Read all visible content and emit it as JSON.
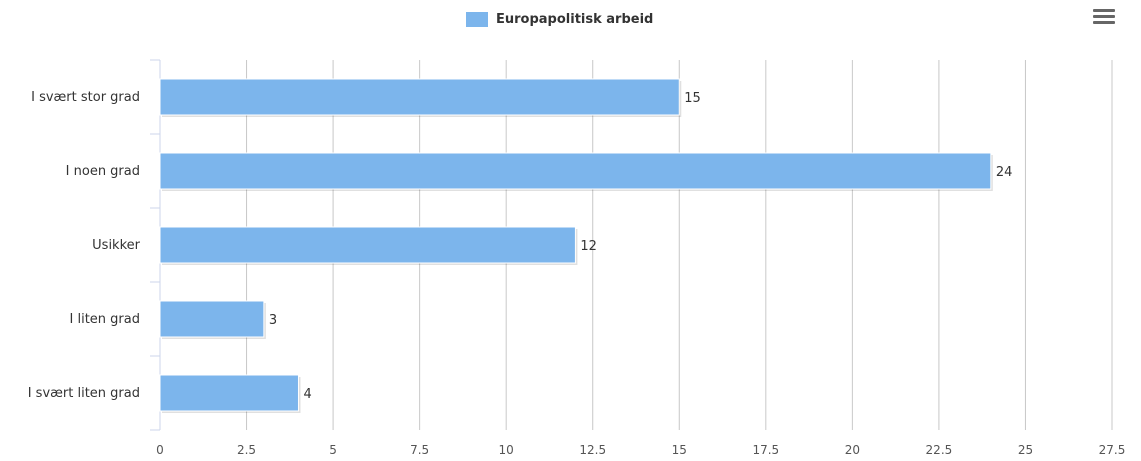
{
  "legend": {
    "label": "Europapolitisk arbeid"
  },
  "menu": {
    "icon": "hamburger-menu-icon"
  },
  "colors": {
    "bar": "#7cb5ec",
    "grid": "#c8c8c8",
    "axis": "#ccd6eb",
    "text": "#333333",
    "tick": "#555555"
  },
  "chart_data": {
    "type": "bar",
    "orientation": "horizontal",
    "categories": [
      "I svært stor grad",
      "I noen grad",
      "Usikker",
      "I liten grad",
      "I svært liten grad"
    ],
    "series": [
      {
        "name": "Europapolitisk arbeid",
        "values": [
          15,
          24,
          12,
          3,
          4
        ]
      }
    ],
    "xlim": [
      0,
      27.5
    ],
    "xticks": [
      "0",
      "2.5",
      "5",
      "7.5",
      "10",
      "12.5",
      "15",
      "17.5",
      "20",
      "22.5",
      "25",
      "27.5"
    ],
    "grid": true,
    "data_labels": true,
    "legend_position": "top-center"
  }
}
